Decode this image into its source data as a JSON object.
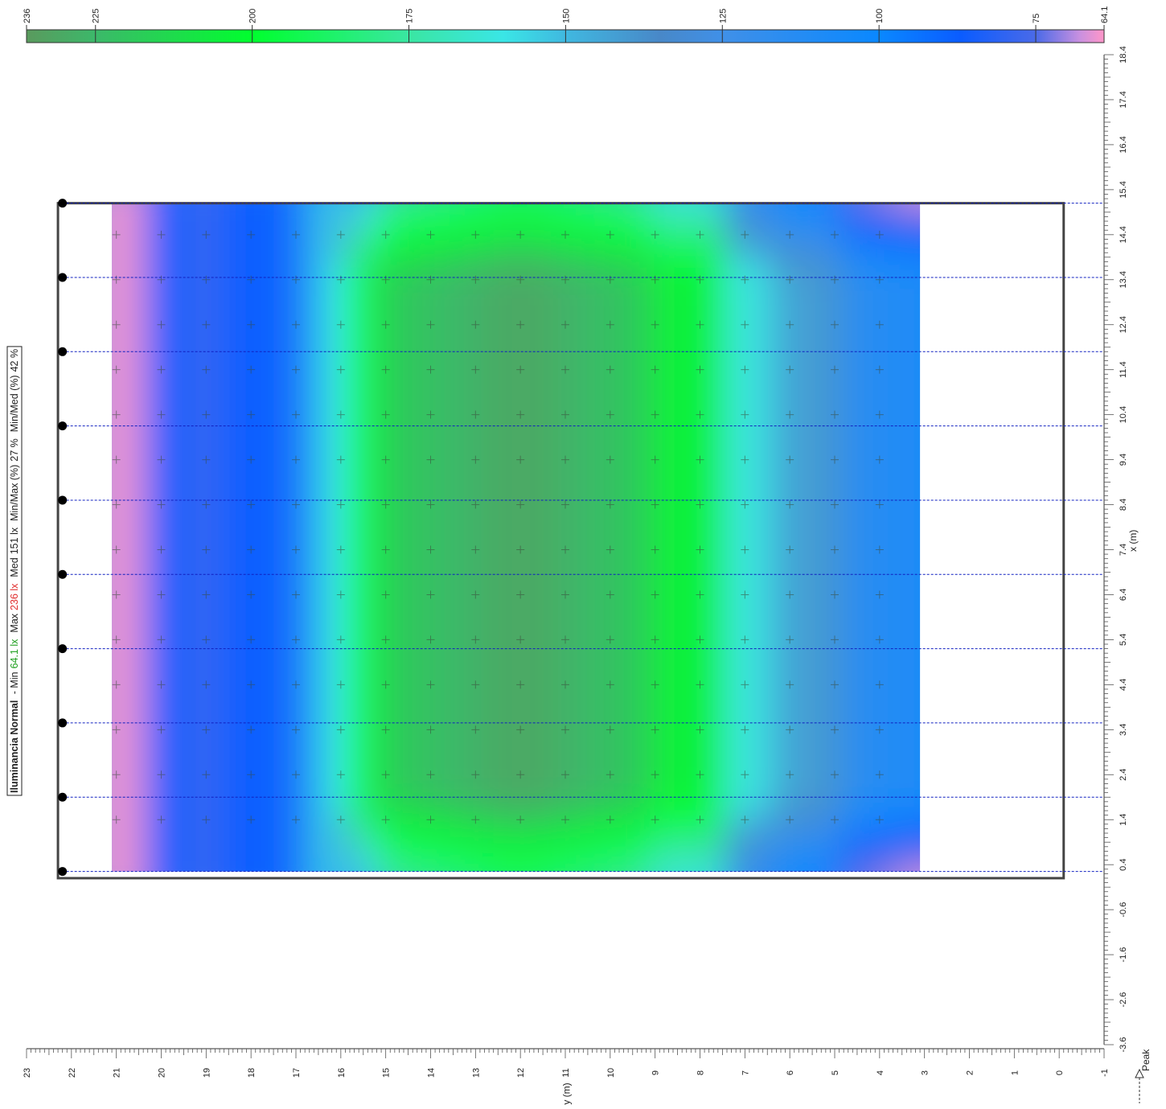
{
  "chart_data": {
    "type": "heatmap",
    "title": "Iluminancia Normal",
    "summary": {
      "min_label": "Min",
      "min_value": "64.1 lx",
      "max_label": "Max",
      "max_value": "236 lx",
      "med_label": "Med",
      "med_value": "151 lx",
      "min_max_label": "Min/Max (%)",
      "min_max_value": "27 %",
      "min_med_label": "Min/Med (%)",
      "min_med_value": "42 %"
    },
    "xlabel": "x (m)",
    "ylabel": "y (m)",
    "x_ticks": [
      "18.4",
      "17.4",
      "16.4",
      "15.4",
      "14.4",
      "13.4",
      "12.4",
      "11.4",
      "10.4",
      "9.4",
      "8.4",
      "7.4",
      "6.4",
      "5.4",
      "4.4",
      "3.4",
      "2.4",
      "1.4",
      "0.4",
      "-0.6",
      "-1.6",
      "-2.6",
      "-3.6"
    ],
    "y_ticks": [
      "23",
      "22",
      "21",
      "20",
      "19",
      "18",
      "17",
      "16",
      "15",
      "14",
      "13",
      "12",
      "11",
      "10",
      "9",
      "8",
      "7",
      "6",
      "5",
      "4",
      "3",
      "2",
      "1",
      "0",
      "-1"
    ],
    "peak_label": "Peak",
    "xlim": [
      -3.6,
      18.4
    ],
    "ylim": [
      -1,
      23
    ],
    "colorbar": {
      "ticks": [
        "236",
        "225",
        "200",
        "175",
        "150",
        "125",
        "100",
        "75",
        "64.1"
      ],
      "range": [
        64.1,
        236
      ]
    },
    "grid": {
      "x": [
        14.4,
        13.4,
        12.4,
        11.4,
        10.4,
        9.4,
        8.4,
        7.4,
        6.4,
        5.4,
        4.4,
        3.4,
        2.4,
        1.4
      ],
      "y": [
        21,
        20,
        19,
        18,
        17,
        16,
        15,
        14,
        13,
        12,
        11,
        10,
        9,
        8,
        7,
        6,
        5,
        4
      ]
    },
    "luminaire_rows_x": [
      15.1,
      13.45,
      11.8,
      10.15,
      8.5,
      6.85,
      5.2,
      3.55,
      1.9,
      0.25
    ],
    "luminaire_y": 22.2,
    "room": {
      "x": [
        0.1,
        15.1
      ],
      "y": [
        -0.1,
        22.3
      ]
    },
    "calc_area": {
      "x": [
        0.25,
        15.1
      ],
      "y": [
        3.1,
        21.1
      ]
    }
  },
  "colors": {
    "scale": [
      [
        236,
        "#5a9a5e"
      ],
      [
        225,
        "#3cb86a"
      ],
      [
        200,
        "#00ff2e"
      ],
      [
        175,
        "#3ae6a2"
      ],
      [
        160,
        "#3ae6e6"
      ],
      [
        150,
        "#40b8e0"
      ],
      [
        135,
        "#4888c8"
      ],
      [
        125,
        "#4090e8"
      ],
      [
        100,
        "#0a88ff"
      ],
      [
        87,
        "#0a5cff"
      ],
      [
        75,
        "#4a6ae8"
      ],
      [
        68,
        "#c890e0"
      ],
      [
        64.1,
        "#ff96c8"
      ]
    ],
    "max_value_color": "#e03030",
    "min_value_color": "#20a020",
    "luminaire_line": "#1020c0"
  }
}
